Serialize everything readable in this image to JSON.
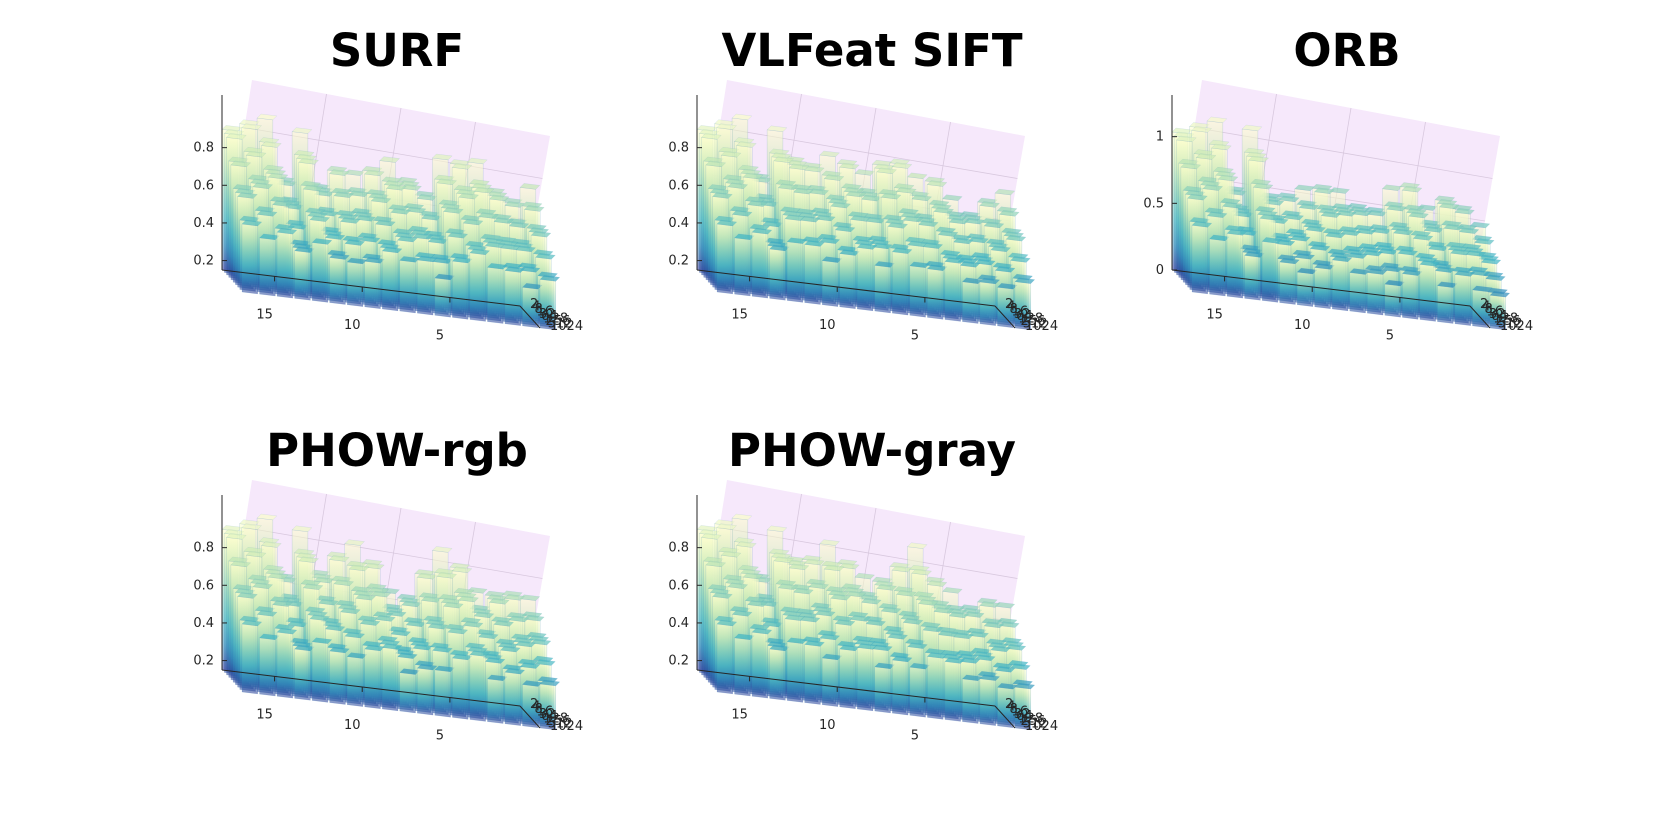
{
  "chart_data": [
    {
      "type": "bar3d",
      "title": "SURF",
      "xticks": [
        5,
        10,
        15
      ],
      "yticks": [
        2,
        4,
        8,
        16,
        32,
        64,
        128,
        256,
        512,
        1024
      ],
      "zticks": [
        "0.2",
        "0.4",
        "0.6",
        "0.8"
      ],
      "zlim": [
        0.15,
        1.0
      ],
      "x_range": [
        1,
        18
      ],
      "colormap": "YlGnBu",
      "peak_values_by_category": [
        0.78,
        0.72,
        0.8,
        0.9,
        0.92,
        0.88,
        0.7,
        0.8,
        0.85,
        0.82,
        0.74,
        0.78,
        0.7,
        0.95,
        0.7,
        0.98,
        0.98,
        0.98
      ]
    },
    {
      "type": "bar3d",
      "title": "VLFeat SIFT",
      "xticks": [
        5,
        10,
        15
      ],
      "yticks": [
        2,
        4,
        8,
        16,
        32,
        64,
        128,
        256,
        512,
        1024
      ],
      "zticks": [
        "0.2",
        "0.4",
        "0.6",
        "0.8"
      ],
      "zlim": [
        0.15,
        1.0
      ],
      "x_range": [
        1,
        18
      ],
      "colormap": "YlGnBu",
      "peak_values_by_category": [
        0.75,
        0.72,
        0.66,
        0.7,
        0.82,
        0.78,
        0.88,
        0.9,
        0.78,
        0.86,
        0.84,
        0.8,
        0.86,
        0.96,
        0.72,
        0.98,
        0.98,
        0.98
      ]
    },
    {
      "type": "bar3d",
      "title": "ORB",
      "xticks": [
        5,
        10,
        15
      ],
      "yticks": [
        2,
        4,
        8,
        16,
        32,
        64,
        128,
        256,
        512,
        1024
      ],
      "zticks": [
        "0",
        "0.5",
        "1"
      ],
      "zlim": [
        0,
        1.2
      ],
      "x_range": [
        1,
        18
      ],
      "colormap": "YlGnBu",
      "peak_values_by_category": [
        0.6,
        0.75,
        0.85,
        0.7,
        0.9,
        0.8,
        0.65,
        0.7,
        0.75,
        0.8,
        0.72,
        0.68,
        0.7,
        1.15,
        0.7,
        1.15,
        1.15,
        1.15
      ]
    },
    {
      "type": "bar3d",
      "title": "PHOW-rgb",
      "xticks": [
        5,
        10,
        15
      ],
      "yticks": [
        2,
        4,
        8,
        16,
        32,
        64,
        128,
        256,
        512,
        1024
      ],
      "zticks": [
        "0.2",
        "0.4",
        "0.6",
        "0.8"
      ],
      "zlim": [
        0.15,
        1.0
      ],
      "x_range": [
        1,
        18
      ],
      "colormap": "YlGnBu",
      "peak_values_by_category": [
        0.72,
        0.76,
        0.78,
        0.74,
        0.9,
        0.92,
        0.82,
        0.7,
        0.68,
        0.86,
        0.9,
        0.86,
        0.78,
        0.96,
        0.72,
        0.98,
        0.98,
        0.98
      ]
    },
    {
      "type": "bar3d",
      "title": "PHOW-gray",
      "xticks": [
        5,
        10,
        15
      ],
      "yticks": [
        2,
        4,
        8,
        16,
        32,
        64,
        128,
        256,
        512,
        1024
      ],
      "zticks": [
        "0.2",
        "0.4",
        "0.6",
        "0.8"
      ],
      "zlim": [
        0.15,
        1.0
      ],
      "x_range": [
        1,
        18
      ],
      "colormap": "YlGnBu",
      "peak_values_by_category": [
        0.68,
        0.72,
        0.7,
        0.74,
        0.82,
        0.94,
        0.86,
        0.8,
        0.76,
        0.86,
        0.9,
        0.84,
        0.86,
        0.96,
        0.72,
        0.98,
        0.98,
        0.98
      ]
    }
  ]
}
